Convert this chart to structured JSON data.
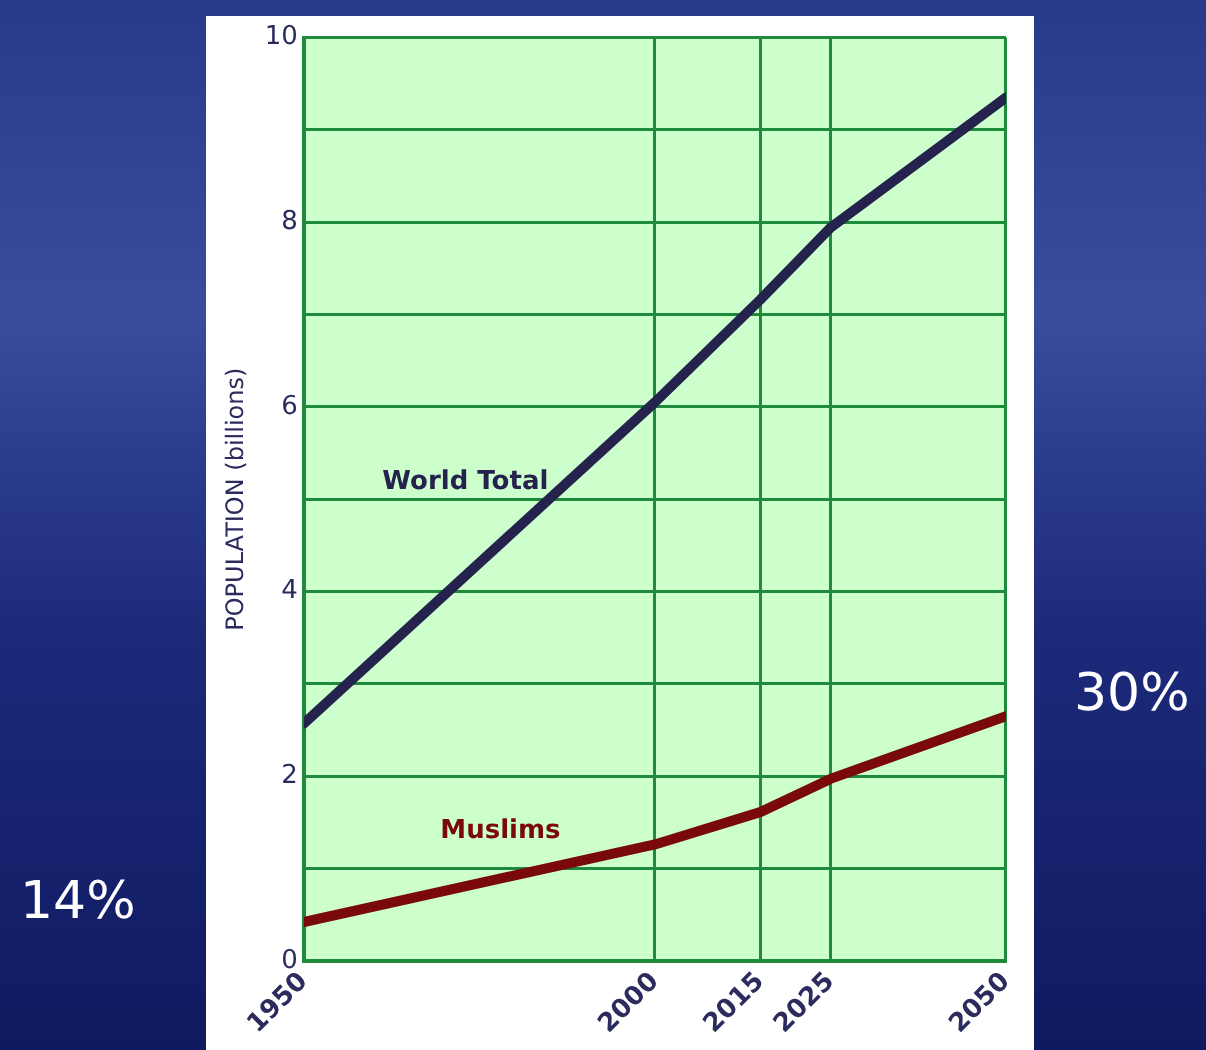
{
  "chart_data": {
    "type": "line",
    "ylabel": "POPULATION (billions)",
    "x": [
      1950,
      2000,
      2015,
      2025,
      2050
    ],
    "xlim": [
      1950,
      2050
    ],
    "xticks": [
      1950,
      2000,
      2015,
      2025,
      2050
    ],
    "ylim": [
      0,
      10
    ],
    "yticks": [
      0,
      {
        "value": 1,
        "label": null
      },
      2,
      {
        "value": 3,
        "label": null
      },
      4,
      {
        "value": 5,
        "label": null
      },
      6,
      {
        "value": 7,
        "label": null
      },
      8,
      {
        "value": 9,
        "label": null
      },
      10
    ],
    "series": [
      {
        "name": "World Total",
        "color": "#25224e",
        "values": [
          2.57,
          6.05,
          7.16,
          7.94,
          9.35
        ]
      },
      {
        "name": "Muslims",
        "color": "#7a0a0a",
        "values": [
          0.42,
          1.26,
          1.61,
          1.97,
          2.65
        ]
      }
    ],
    "annotations": [
      "14%",
      "30%"
    ],
    "grid": true,
    "legend": false,
    "marker": "none",
    "line_style": "solid"
  }
}
